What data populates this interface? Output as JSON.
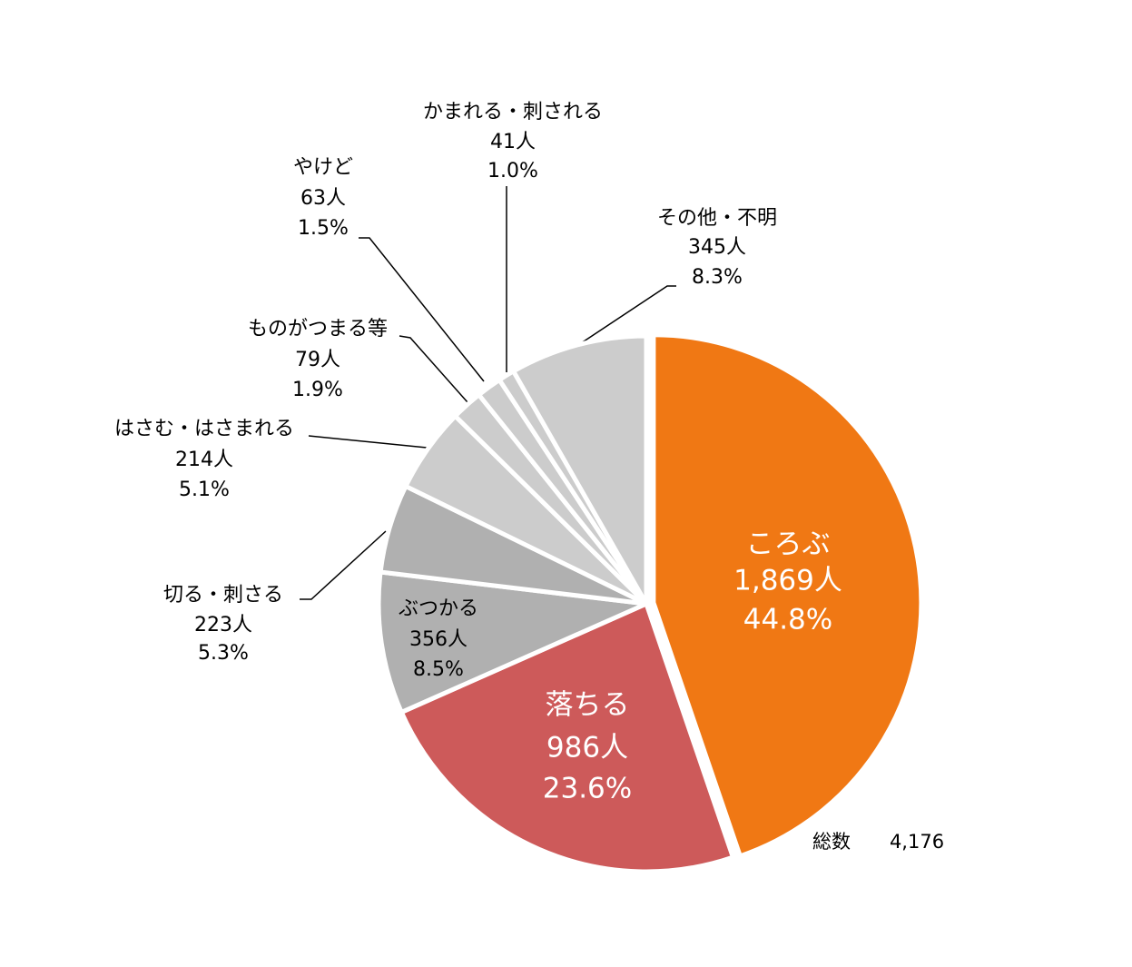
{
  "chart_data": {
    "type": "pie",
    "categories": [
      "ころぶ",
      "落ちる",
      "ぶつかる",
      "切る・刺さる",
      "はさむ・はさまれる",
      "ものがつまる等",
      "やけど",
      "かまれる・刺される",
      "その他・不明"
    ],
    "values": [
      1869,
      986,
      356,
      223,
      214,
      79,
      63,
      41,
      345
    ],
    "value_labels": [
      "1,869人",
      "986人",
      "356人",
      "223人",
      "214人",
      "79人",
      "63人",
      "41人",
      "345人"
    ],
    "percents": [
      44.8,
      23.6,
      8.5,
      5.3,
      5.1,
      1.9,
      1.5,
      1.0,
      8.3
    ],
    "percent_labels": [
      "44.8%",
      "23.6%",
      "8.5%",
      "5.3%",
      "5.1%",
      "1.9%",
      "1.5%",
      "1.0%",
      "8.3%"
    ],
    "colors": [
      "#f07814",
      "#cd5a5a",
      "#b0b0b0",
      "#b0b0b0",
      "#cccccc",
      "#cccccc",
      "#cccccc",
      "#cccccc",
      "#cccccc"
    ],
    "total_title": "総数",
    "total": 4176,
    "total_label": "4,176"
  }
}
